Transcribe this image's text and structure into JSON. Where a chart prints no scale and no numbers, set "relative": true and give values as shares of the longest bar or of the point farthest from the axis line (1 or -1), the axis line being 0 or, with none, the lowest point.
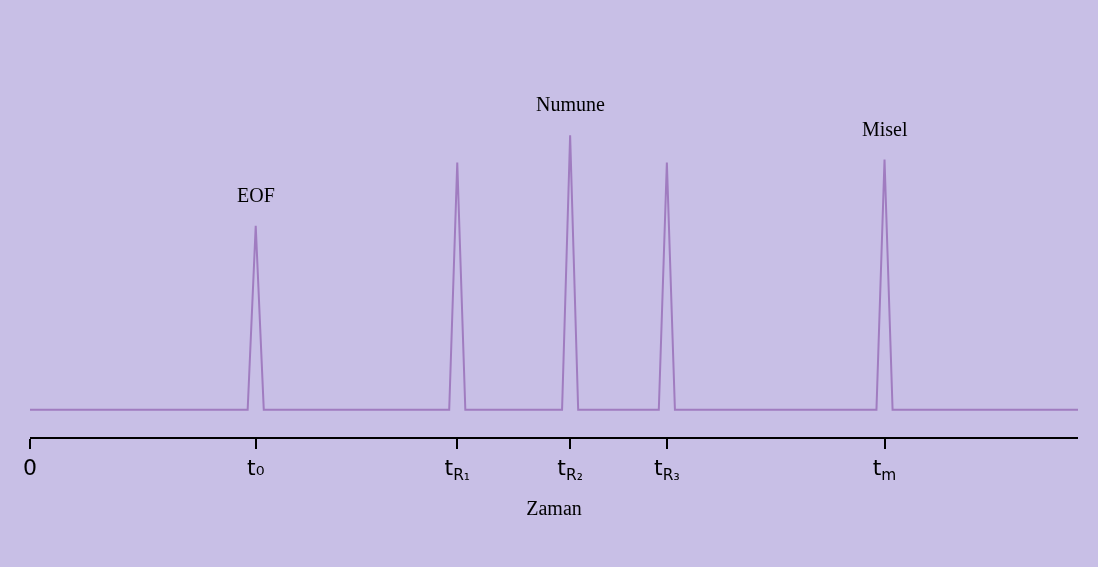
{
  "chart_data": {
    "type": "line",
    "relative": true,
    "xlabel": "Zaman",
    "categories": [
      "0",
      null,
      null,
      null,
      null,
      null,
      null,
      null,
      null,
      null,
      null,
      null,
      null,
      null,
      null,
      null,
      null,
      null,
      null,
      null,
      null,
      null,
      null,
      null,
      null,
      null,
      null,
      null,
      "t₀",
      null,
      null,
      null,
      null,
      null,
      null,
      null,
      null,
      null,
      null,
      null,
      null,
      null,
      null,
      null,
      null,
      null,
      null,
      null,
      null,
      null,
      null,
      null,
      null,
      "t$_{R₁}$",
      null,
      null,
      null,
      null,
      null,
      null,
      null,
      null,
      null,
      null,
      null,
      null,
      null,
      "t$_{R₂}$",
      null,
      null,
      null,
      null,
      null,
      null,
      null,
      null,
      null,
      null,
      null,
      "t$_{R₃}$",
      null,
      null,
      null,
      null,
      null,
      null,
      null,
      null,
      null,
      null,
      null,
      null,
      null,
      null,
      null,
      null,
      null,
      null,
      null,
      null,
      null,
      null,
      null,
      null,
      null,
      null,
      "t$_{m}$",
      null,
      null,
      null,
      null,
      null,
      null,
      null,
      null,
      null,
      null,
      null,
      null,
      null,
      null,
      null,
      null,
      null,
      null,
      null,
      null,
      null,
      null,
      null,
      null
    ],
    "series": [
      {
        "color": "#a07cc0",
        "values": [
          0.09,
          0.09,
          0.09,
          0.09,
          0.09,
          0.09,
          0.09,
          0.09,
          0.09,
          0.09,
          0.09,
          0.09,
          0.09,
          0.09,
          0.09,
          0.09,
          0.09,
          0.09,
          0.09,
          0.09,
          0.09,
          0.09,
          0.09,
          0.09,
          0.09,
          0.09,
          0.09,
          0.09,
          0.7,
          0.09,
          0.09,
          0.09,
          0.09,
          0.09,
          0.09,
          0.09,
          0.09,
          0.09,
          0.09,
          0.09,
          0.09,
          0.09,
          0.09,
          0.09,
          0.09,
          0.09,
          0.09,
          0.09,
          0.09,
          0.09,
          0.09,
          0.09,
          0.09,
          0.91,
          0.09,
          0.09,
          0.09,
          0.09,
          0.09,
          0.09,
          0.09,
          0.09,
          0.09,
          0.09,
          0.09,
          0.09,
          0.09,
          1,
          0.09,
          0.09,
          0.09,
          0.09,
          0.09,
          0.09,
          0.09,
          0.09,
          0.09,
          0.09,
          0.09,
          0.91,
          0.09,
          0.09,
          0.09,
          0.09,
          0.09,
          0.09,
          0.09,
          0.09,
          0.09,
          0.09,
          0.09,
          0.09,
          0.09,
          0.09,
          0.09,
          0.09,
          0.09,
          0.09,
          0.09,
          0.09,
          0.09,
          0.09,
          0.09,
          0.09,
          0.09,
          0.09,
          0.92,
          0.09,
          0.09,
          0.09,
          0.09,
          0.09,
          0.09,
          0.09,
          0.09,
          0.09,
          0.09,
          0.09,
          0.09,
          0.09,
          0.09,
          0.09,
          0.09,
          0.09,
          0.09,
          0.09,
          0.09,
          0.09,
          0.09,
          0.09,
          0.09
        ]
      }
    ],
    "annotations": [
      {
        "text": "EOF",
        "x": "t₀",
        "y": 0.7
      },
      {
        "text": "Numune",
        "x": "t$_{R₂}$",
        "y": 1
      },
      {
        "text": "Misel",
        "x": "t$_{m}$",
        "y": 0.92
      }
    ],
    "grid": false,
    "marker": "none",
    "line_style": "solid"
  }
}
